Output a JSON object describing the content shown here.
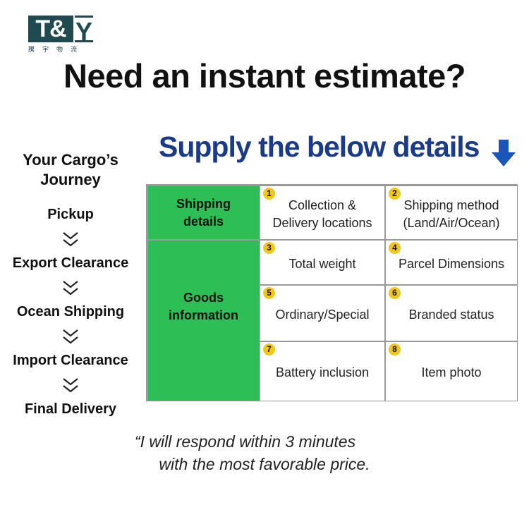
{
  "logo": {
    "text": "T&Y",
    "subtitle": "騰宇物流"
  },
  "headline": "Need an instant estimate?",
  "subheadline": "Supply the below details",
  "accent_color": "#1a3a8a",
  "green_color": "#2dbf55",
  "journey": {
    "title": "Your Cargo’s Journey",
    "steps": [
      "Pickup",
      "Export Clearance",
      "Ocean Shipping",
      "Import Clearance",
      "Final Delivery"
    ]
  },
  "table": {
    "groups": [
      "Shipping details",
      "Goods information"
    ],
    "items": [
      {
        "n": "1",
        "label": "Collection & Delivery locations"
      },
      {
        "n": "2",
        "label": "Shipping method (Land/Air/Ocean)"
      },
      {
        "n": "3",
        "label": "Total weight"
      },
      {
        "n": "4",
        "label": "Parcel Dimensions"
      },
      {
        "n": "5",
        "label": "Ordinary/Special"
      },
      {
        "n": "6",
        "label": "Branded status"
      },
      {
        "n": "7",
        "label": "Battery inclusion"
      },
      {
        "n": "8",
        "label": "Item photo"
      }
    ]
  },
  "quote": {
    "line1": "“I will respond within 3 minutes",
    "line2": "with the most favorable price."
  }
}
